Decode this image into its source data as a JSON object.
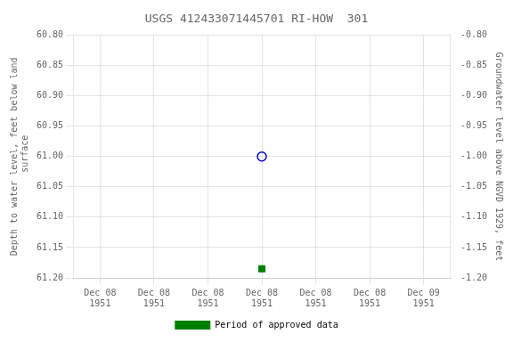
{
  "chart_data": {
    "type": "scatter",
    "title": "USGS 412433071445701 RI-HOW  301",
    "ylabel": "Depth to water level, feet below land\n surface",
    "y2label": "Groundwater level above NGVD 1929, feet",
    "categories": [
      "Dec 08\n1951",
      "Dec 08\n1951",
      "Dec 08\n1951",
      "Dec 08\n1951",
      "Dec 08\n1951",
      "Dec 08\n1951",
      "Dec 09\n1951"
    ],
    "series": [
      {
        "color": "#0000cc",
        "marker": "open_circle",
        "values": [
          null,
          null,
          null,
          61.0,
          null,
          null,
          null
        ]
      },
      {
        "name": "Period of approved data",
        "color": "#008000",
        "marker": "square",
        "values": [
          null,
          null,
          null,
          61.185,
          null,
          null,
          null
        ]
      }
    ],
    "ylim": [
      61.2,
      60.8
    ],
    "yticks": [
      {
        "value": 60.8,
        "label": "60.80"
      },
      {
        "value": 60.85,
        "label": "60.85"
      },
      {
        "value": 60.9,
        "label": "60.90"
      },
      {
        "value": 60.95,
        "label": "60.95"
      },
      {
        "value": 61.0,
        "label": "61.00"
      },
      {
        "value": 61.05,
        "label": "61.05"
      },
      {
        "value": 61.1,
        "label": "61.10"
      },
      {
        "value": 61.15,
        "label": "61.15"
      },
      {
        "value": 61.2,
        "label": "61.20"
      }
    ],
    "y2lim": [
      -1.2,
      -0.8
    ],
    "y2ticks": [
      {
        "value": -0.8,
        "label": "-0.80"
      },
      {
        "value": -0.85,
        "label": "-0.85"
      },
      {
        "value": -0.9,
        "label": "-0.90"
      },
      {
        "value": -0.95,
        "label": "-0.95"
      },
      {
        "value": -1.0,
        "label": "-1.00"
      },
      {
        "value": -1.05,
        "label": "-1.05"
      },
      {
        "value": -1.1,
        "label": "-1.10"
      },
      {
        "value": -1.15,
        "label": "-1.15"
      },
      {
        "value": -1.2,
        "label": "-1.20"
      }
    ],
    "grid": true,
    "legend": "bottom"
  }
}
